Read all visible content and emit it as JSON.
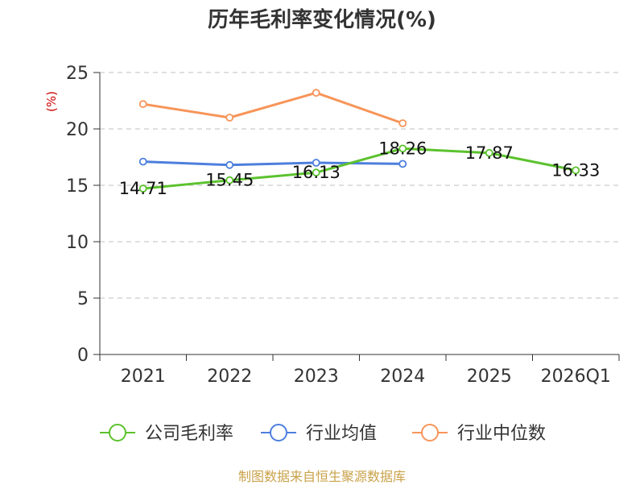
{
  "chart_data": {
    "type": "line",
    "title": "历年毛利率变化情况(%)",
    "ylabel": "(%)",
    "xlabel": "",
    "categories": [
      "2021",
      "2022",
      "2023",
      "2024",
      "2025",
      "2026Q1"
    ],
    "ylim": [
      0,
      25
    ],
    "yticks": [
      0,
      5,
      10,
      15,
      20,
      25
    ],
    "grid": true,
    "legend_position": "bottom",
    "series": [
      {
        "name": "公司毛利率",
        "color": "#5cc22e",
        "values": [
          14.71,
          15.45,
          16.13,
          18.26,
          17.87,
          16.33
        ],
        "labels": [
          "14.71",
          "15.45",
          "16.13",
          "18.26",
          "17.87",
          "16.33"
        ]
      },
      {
        "name": "行业均值",
        "color": "#4d7fdd",
        "values": [
          17.1,
          16.8,
          17.0,
          16.9,
          null,
          null
        ]
      },
      {
        "name": "行业中位数",
        "color": "#f79559",
        "values": [
          22.2,
          21.0,
          23.2,
          20.5,
          null,
          null
        ]
      }
    ]
  },
  "footer": {
    "source": "制图数据来自恒生聚源数据库"
  },
  "colors": {
    "ylabel": "#cc0000",
    "axis": "#333333",
    "grid": "#cccccc"
  }
}
